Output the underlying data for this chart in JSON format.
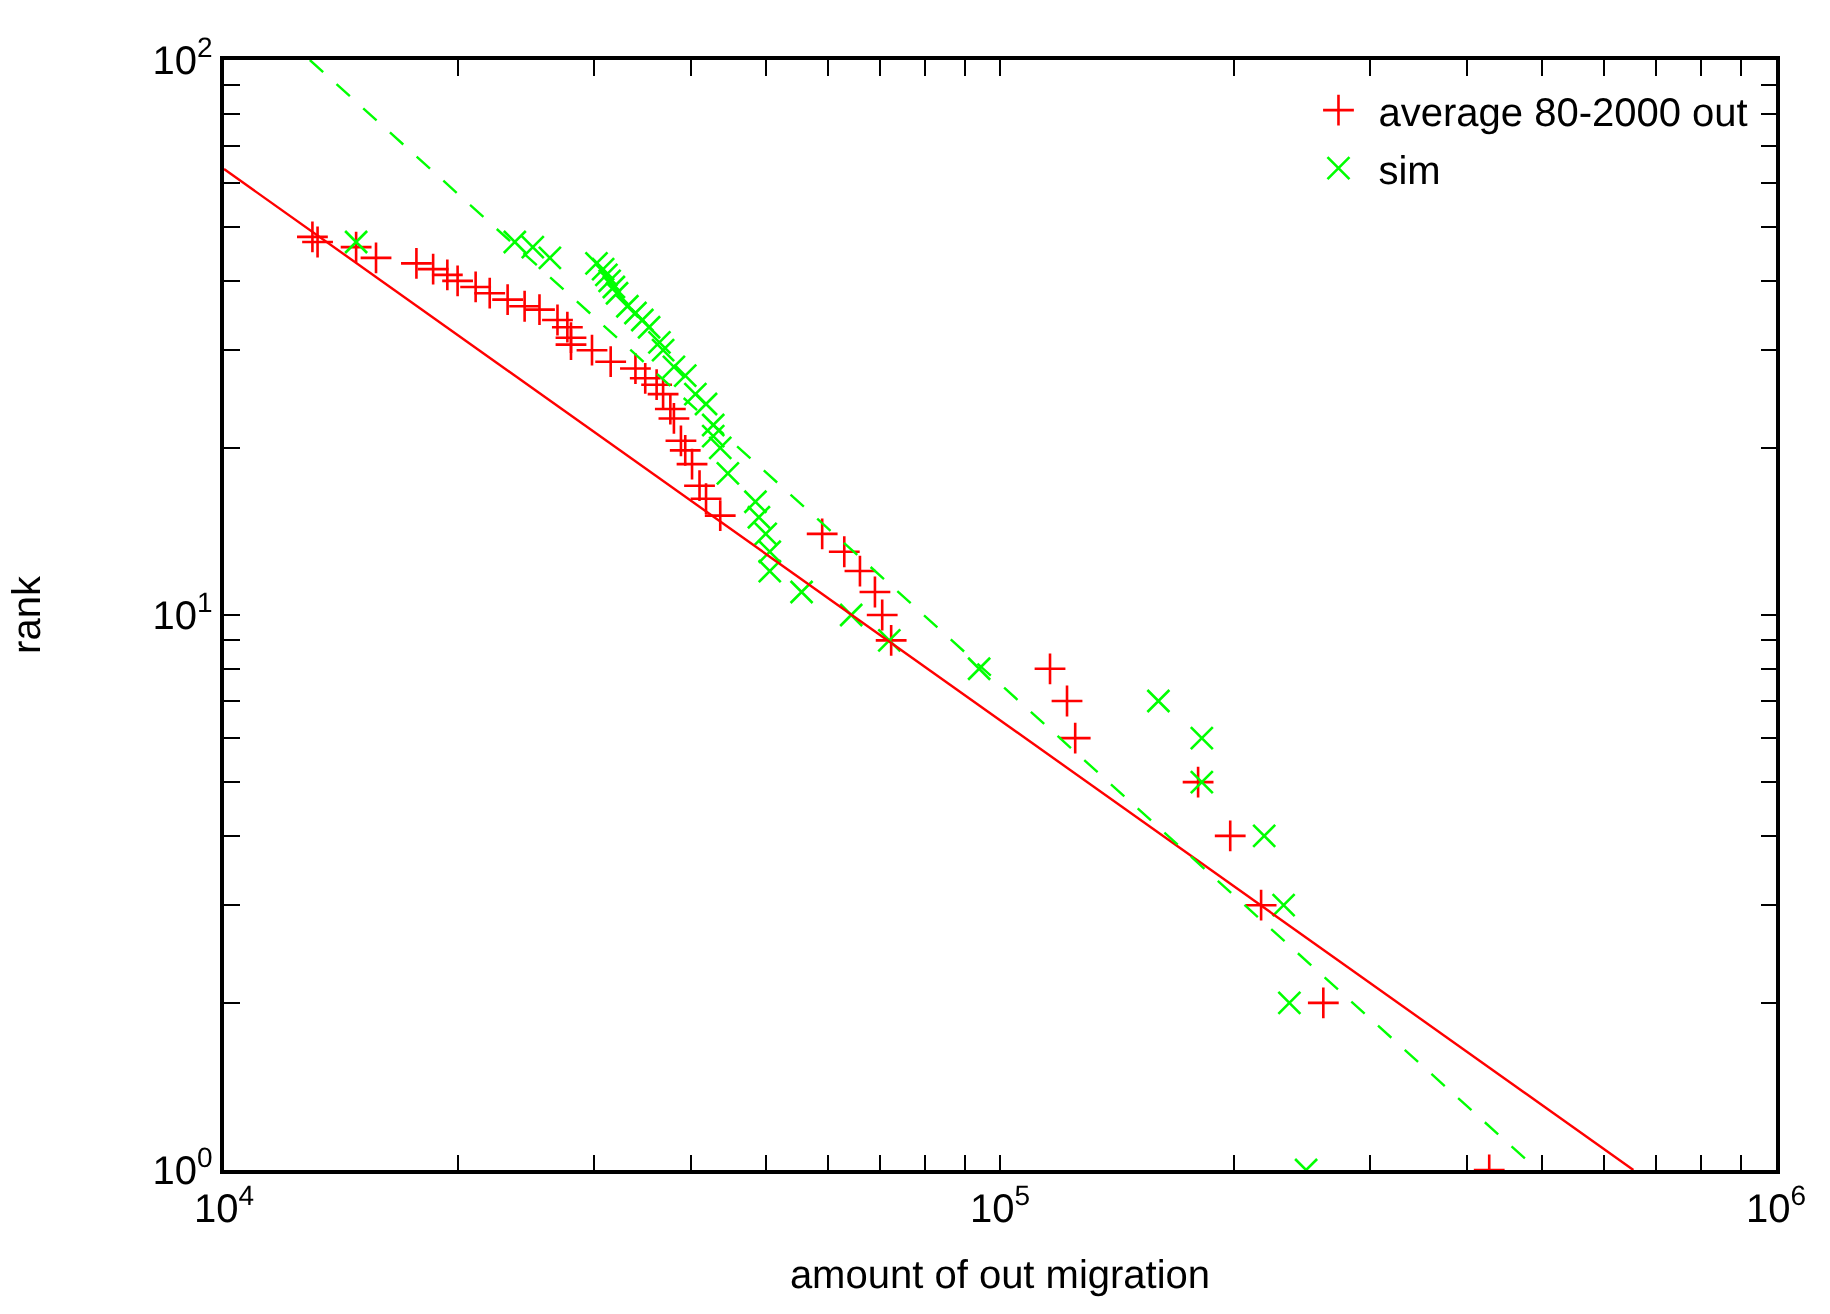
{
  "chart_data": {
    "type": "scatter",
    "xlabel": "amount of out migration",
    "ylabel": "rank",
    "log": "xy",
    "legend": "top right",
    "xlim": [
      10000,
      1000000
    ],
    "ylim": [
      1,
      100
    ],
    "xticks": [
      {
        "value": 10000,
        "label": "10$^{4}$"
      },
      {
        "value": 20000,
        "label": null
      },
      {
        "value": 30000,
        "label": null
      },
      {
        "value": 40000,
        "label": null
      },
      {
        "value": 50000,
        "label": null
      },
      {
        "value": 60000,
        "label": null
      },
      {
        "value": 70000,
        "label": null
      },
      {
        "value": 80000,
        "label": null
      },
      {
        "value": 90000,
        "label": null
      },
      {
        "value": 100000,
        "label": "10$^{5}$"
      },
      {
        "value": 200000,
        "label": null
      },
      {
        "value": 300000,
        "label": null
      },
      {
        "value": 400000,
        "label": null
      },
      {
        "value": 500000,
        "label": null
      },
      {
        "value": 600000,
        "label": null
      },
      {
        "value": 700000,
        "label": null
      },
      {
        "value": 800000,
        "label": null
      },
      {
        "value": 900000,
        "label": null
      },
      {
        "value": 1000000,
        "label": "10$^{6}$"
      }
    ],
    "yticks": [
      {
        "value": 1,
        "label": "10$^{0}$"
      },
      {
        "value": 2,
        "label": null
      },
      {
        "value": 3,
        "label": null
      },
      {
        "value": 4,
        "label": null
      },
      {
        "value": 5,
        "label": null
      },
      {
        "value": 6,
        "label": null
      },
      {
        "value": 7,
        "label": null
      },
      {
        "value": 8,
        "label": null
      },
      {
        "value": 9,
        "label": null
      },
      {
        "value": 10,
        "label": "10$^{1}$"
      },
      {
        "value": 20,
        "label": null
      },
      {
        "value": 30,
        "label": null
      },
      {
        "value": 40,
        "label": null
      },
      {
        "value": 50,
        "label": null
      },
      {
        "value": 60,
        "label": null
      },
      {
        "value": 70,
        "label": null
      },
      {
        "value": 80,
        "label": null
      },
      {
        "value": 90,
        "label": null
      },
      {
        "value": 100,
        "label": "10$^{2}$"
      }
    ],
    "series": [
      {
        "name": "average 80-2000 out",
        "marker": "cross",
        "color": "#ff0000",
        "x": [
          13000,
          13200,
          14800,
          15700,
          17700,
          18600,
          19400,
          20000,
          21100,
          22000,
          23200,
          24400,
          25500,
          26900,
          27700,
          28000,
          28000,
          29800,
          31500,
          33900,
          34900,
          36100,
          36800,
          37600,
          38000,
          38800,
          39300,
          40100,
          41000,
          41800,
          43600,
          59000,
          63000,
          66000,
          69000,
          70500,
          72400,
          116000,
          122000,
          125000,
          180000,
          198000,
          217000,
          261000,
          427000
        ],
        "values": [
          48,
          47,
          46,
          44,
          43,
          42,
          41,
          40,
          39,
          38,
          37,
          36,
          35.5,
          34,
          33,
          31.6,
          30.7,
          30,
          28.6,
          27.8,
          26.7,
          26,
          25,
          23.5,
          22.6,
          20.6,
          19.8,
          18.7,
          17.1,
          16.2,
          15.1,
          14,
          13,
          12,
          11,
          10,
          9,
          8,
          7,
          6,
          5,
          4,
          3,
          2,
          1
        ]
      },
      {
        "name": "sim",
        "marker": "x",
        "color": "#00ff00",
        "x": [
          14800,
          23700,
          25000,
          26300,
          30200,
          30800,
          31100,
          31400,
          31800,
          32100,
          33100,
          33900,
          34600,
          35300,
          36400,
          36800,
          38000,
          39300,
          40500,
          41800,
          42700,
          42700,
          43600,
          44600,
          48400,
          48900,
          49900,
          50500,
          50500,
          55500,
          64300,
          72000,
          94000,
          160000,
          182000,
          182000,
          219000,
          232000,
          236000,
          248000
        ],
        "values": [
          47,
          47,
          46,
          44,
          43,
          42,
          41,
          40,
          39,
          38,
          36,
          35,
          34,
          33,
          31,
          30,
          28,
          27,
          25,
          24,
          22,
          21,
          20,
          18,
          16,
          15,
          14,
          13,
          12,
          11,
          10,
          9,
          8,
          7,
          6,
          5,
          4,
          3,
          2,
          1
        ]
      },
      {
        "type": "line",
        "line_style": "solid",
        "color": "#ff0000",
        "x": [
          10000,
          655000
        ],
        "values": [
          63.6,
          1
        ]
      },
      {
        "type": "line",
        "line_style": "dashed",
        "color": "#00ff00",
        "x": [
          12900,
          493000
        ],
        "values": [
          100,
          1
        ]
      }
    ]
  }
}
